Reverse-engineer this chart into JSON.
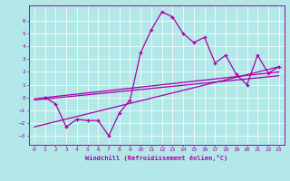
{
  "title": "",
  "xlabel": "Windchill (Refroidissement éolien,°C)",
  "xlim": [
    -0.5,
    23.5
  ],
  "ylim": [
    -3.7,
    7.2
  ],
  "yticks": [
    -3,
    -2,
    -1,
    0,
    1,
    2,
    3,
    4,
    5,
    6
  ],
  "xticks": [
    0,
    1,
    2,
    3,
    4,
    5,
    6,
    7,
    8,
    9,
    10,
    11,
    12,
    13,
    14,
    15,
    16,
    17,
    18,
    19,
    20,
    21,
    22,
    23
  ],
  "bg_color": "#b2e8e8",
  "grid_color": "#ffffff",
  "line_color": "#aa00aa",
  "line1": {
    "x": [
      1,
      2,
      3,
      4,
      5,
      6,
      7,
      8,
      9,
      10,
      11,
      12,
      13,
      14,
      15,
      16,
      17,
      18,
      19,
      20,
      21,
      22,
      23
    ],
    "y": [
      0.0,
      -0.5,
      -2.3,
      -1.7,
      -1.8,
      -1.8,
      -3.0,
      -1.2,
      -0.2,
      3.5,
      5.3,
      6.7,
      6.3,
      5.0,
      4.3,
      4.7,
      2.7,
      3.3,
      1.8,
      1.0,
      3.3,
      1.9,
      2.4
    ]
  },
  "line2": {
    "x": [
      0,
      23
    ],
    "y": [
      -2.3,
      2.4
    ]
  },
  "line3": {
    "x": [
      0,
      23
    ],
    "y": [
      -0.2,
      1.7
    ]
  },
  "line4": {
    "x": [
      0,
      23
    ],
    "y": [
      -0.1,
      2.0
    ]
  }
}
